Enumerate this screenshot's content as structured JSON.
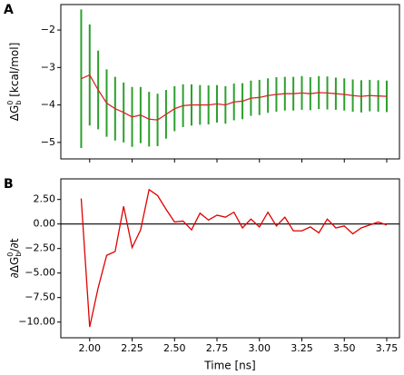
{
  "chart_data": [
    {
      "type": "errorbar",
      "panel": "A",
      "ylabel": {
        "main": "ΔG",
        "sub": "b",
        "sup": "0",
        "rest": " [kcal/mol]"
      },
      "x": [
        1.95,
        2.0,
        2.05,
        2.1,
        2.15,
        2.2,
        2.25,
        2.3,
        2.35,
        2.4,
        2.45,
        2.5,
        2.55,
        2.6,
        2.65,
        2.7,
        2.75,
        2.8,
        2.85,
        2.9,
        2.95,
        3.0,
        3.05,
        3.1,
        3.15,
        3.2,
        3.25,
        3.3,
        3.35,
        3.4,
        3.45,
        3.5,
        3.55,
        3.6,
        3.65,
        3.7,
        3.75
      ],
      "series": [
        {
          "color": "#d62728",
          "error_color": "#2ca02c",
          "values": [
            -3.3,
            -3.2,
            -3.6,
            -3.95,
            -4.1,
            -4.2,
            -4.32,
            -4.27,
            -4.38,
            -4.4,
            -4.25,
            -4.1,
            -4.02,
            -4.0,
            -4.0,
            -4.0,
            -3.97,
            -4.0,
            -3.92,
            -3.9,
            -3.82,
            -3.8,
            -3.75,
            -3.72,
            -3.7,
            -3.7,
            -3.68,
            -3.7,
            -3.67,
            -3.68,
            -3.7,
            -3.72,
            -3.75,
            -3.77,
            -3.75,
            -3.76,
            -3.77
          ],
          "errors": [
            1.85,
            1.35,
            1.05,
            0.9,
            0.85,
            0.8,
            0.8,
            0.75,
            0.73,
            0.7,
            0.65,
            0.6,
            0.57,
            0.55,
            0.53,
            0.52,
            0.5,
            0.5,
            0.49,
            0.48,
            0.47,
            0.47,
            0.46,
            0.46,
            0.45,
            0.45,
            0.45,
            0.44,
            0.44,
            0.44,
            0.43,
            0.43,
            0.43,
            0.43,
            0.42,
            0.42,
            0.42
          ]
        }
      ],
      "xlim": [
        1.83,
        3.825
      ],
      "xticks": [
        2.0,
        2.25,
        2.5,
        2.75,
        3.0,
        3.25,
        3.5,
        3.75
      ],
      "ylim": [
        -5.44,
        -1.32
      ],
      "yticks": [
        {
          "value": -2,
          "label": "−2"
        },
        {
          "value": -3,
          "label": "−3"
        },
        {
          "value": -4,
          "label": "−4"
        },
        {
          "value": -5,
          "label": "−5"
        }
      ]
    },
    {
      "type": "line",
      "panel": "B",
      "ylabel": {
        "main": "∂ΔG",
        "sub": "b",
        "sup": "0",
        "rest": "/∂t"
      },
      "xlabel": "Time [ns]",
      "x": [
        1.95,
        2.0,
        2.05,
        2.1,
        2.15,
        2.2,
        2.25,
        2.3,
        2.35,
        2.4,
        2.45,
        2.5,
        2.55,
        2.6,
        2.65,
        2.7,
        2.75,
        2.8,
        2.85,
        2.9,
        2.95,
        3.0,
        3.05,
        3.1,
        3.15,
        3.2,
        3.25,
        3.3,
        3.35,
        3.4,
        3.45,
        3.5,
        3.55,
        3.6,
        3.65,
        3.7,
        3.75
      ],
      "series": [
        {
          "color": "#e00000",
          "values": [
            2.6,
            -10.5,
            -6.5,
            -3.2,
            -2.8,
            1.8,
            -2.4,
            -0.6,
            3.5,
            2.9,
            1.5,
            0.2,
            0.3,
            -0.6,
            1.1,
            0.4,
            0.9,
            0.7,
            1.2,
            -0.4,
            0.5,
            -0.3,
            1.2,
            -0.2,
            0.7,
            -0.7,
            -0.7,
            -0.3,
            -0.9,
            0.5,
            -0.4,
            -0.2,
            -1.0,
            -0.4,
            -0.1,
            0.2,
            -0.1
          ]
        }
      ],
      "hline": 0,
      "xlim": [
        1.83,
        3.825
      ],
      "xticks": [
        {
          "value": 2.0,
          "label": "2.00"
        },
        {
          "value": 2.25,
          "label": "2.25"
        },
        {
          "value": 2.5,
          "label": "2.50"
        },
        {
          "value": 2.75,
          "label": "2.75"
        },
        {
          "value": 3.0,
          "label": "3.00"
        },
        {
          "value": 3.25,
          "label": "3.25"
        },
        {
          "value": 3.5,
          "label": "3.50"
        },
        {
          "value": 3.75,
          "label": "3.75"
        }
      ],
      "ylim": [
        -11.6,
        4.6
      ],
      "yticks": [
        {
          "value": 2.5,
          "label": "2.50"
        },
        {
          "value": 0,
          "label": "0.00"
        },
        {
          "value": -2.5,
          "label": "−2.50"
        },
        {
          "value": -5,
          "label": "−5.00"
        },
        {
          "value": -7.5,
          "label": "−7.50"
        },
        {
          "value": -10,
          "label": "−10.00"
        }
      ]
    }
  ]
}
